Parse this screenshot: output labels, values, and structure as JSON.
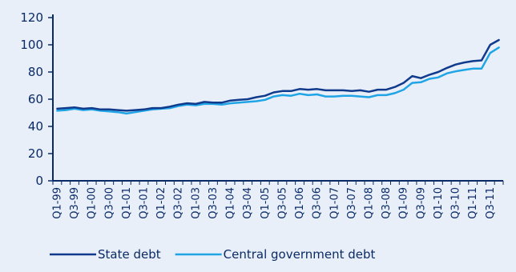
{
  "chart_data": {
    "type": "line",
    "title": "",
    "xlabel": "",
    "ylabel": "",
    "ylim": [
      0,
      120
    ],
    "yticks": [
      0,
      20,
      40,
      60,
      80,
      100,
      120
    ],
    "grid": false,
    "legend_position": "bottom",
    "x_tick_labels": [
      "Q1-99",
      "Q3-99",
      "Q1-00",
      "Q3-00",
      "Q1-01",
      "Q3-01",
      "Q1-02",
      "Q3-02",
      "Q1-03",
      "Q3-03",
      "Q1-04",
      "Q3-04",
      "Q1-05",
      "Q3-05",
      "Q1-06",
      "Q3-06",
      "Q1-07",
      "Q3-07",
      "Q1-08",
      "Q3-08",
      "Q1-09",
      "Q3-09",
      "Q1-10",
      "Q3-10",
      "Q1-11",
      "Q3-11"
    ],
    "series": [
      {
        "name": "State debt",
        "color": "#103a8c",
        "values": [
          53,
          53.5,
          54,
          53,
          53.5,
          52.5,
          52.5,
          52,
          51.5,
          52,
          52.5,
          53.5,
          53.5,
          54.5,
          56,
          57,
          56.5,
          58,
          57.5,
          57.5,
          59,
          59.5,
          60,
          61.5,
          62.5,
          65,
          66,
          66,
          67.5,
          67,
          67.5,
          66.5,
          66.5,
          66.5,
          66,
          66.5,
          65.5,
          67,
          67,
          69,
          72,
          77,
          75.5,
          78,
          80,
          83,
          85.5,
          87,
          88,
          88.5,
          100,
          103.5
        ]
      },
      {
        "name": "Central government debt",
        "color": "#1fa4e6",
        "values": [
          51.5,
          52,
          53,
          52,
          52.5,
          51.5,
          51,
          50.5,
          49.5,
          50.5,
          51.5,
          52.5,
          53,
          53.5,
          55,
          56,
          55.5,
          56.5,
          56.5,
          56,
          57,
          57.5,
          58,
          58.5,
          59.5,
          62,
          63,
          62.5,
          64,
          63,
          63.5,
          62,
          62,
          62.5,
          62.5,
          62,
          61.5,
          63,
          63,
          64.5,
          67,
          72,
          72.5,
          75,
          76,
          79,
          80.5,
          81.5,
          82.5,
          82.5,
          94,
          98
        ]
      }
    ]
  }
}
